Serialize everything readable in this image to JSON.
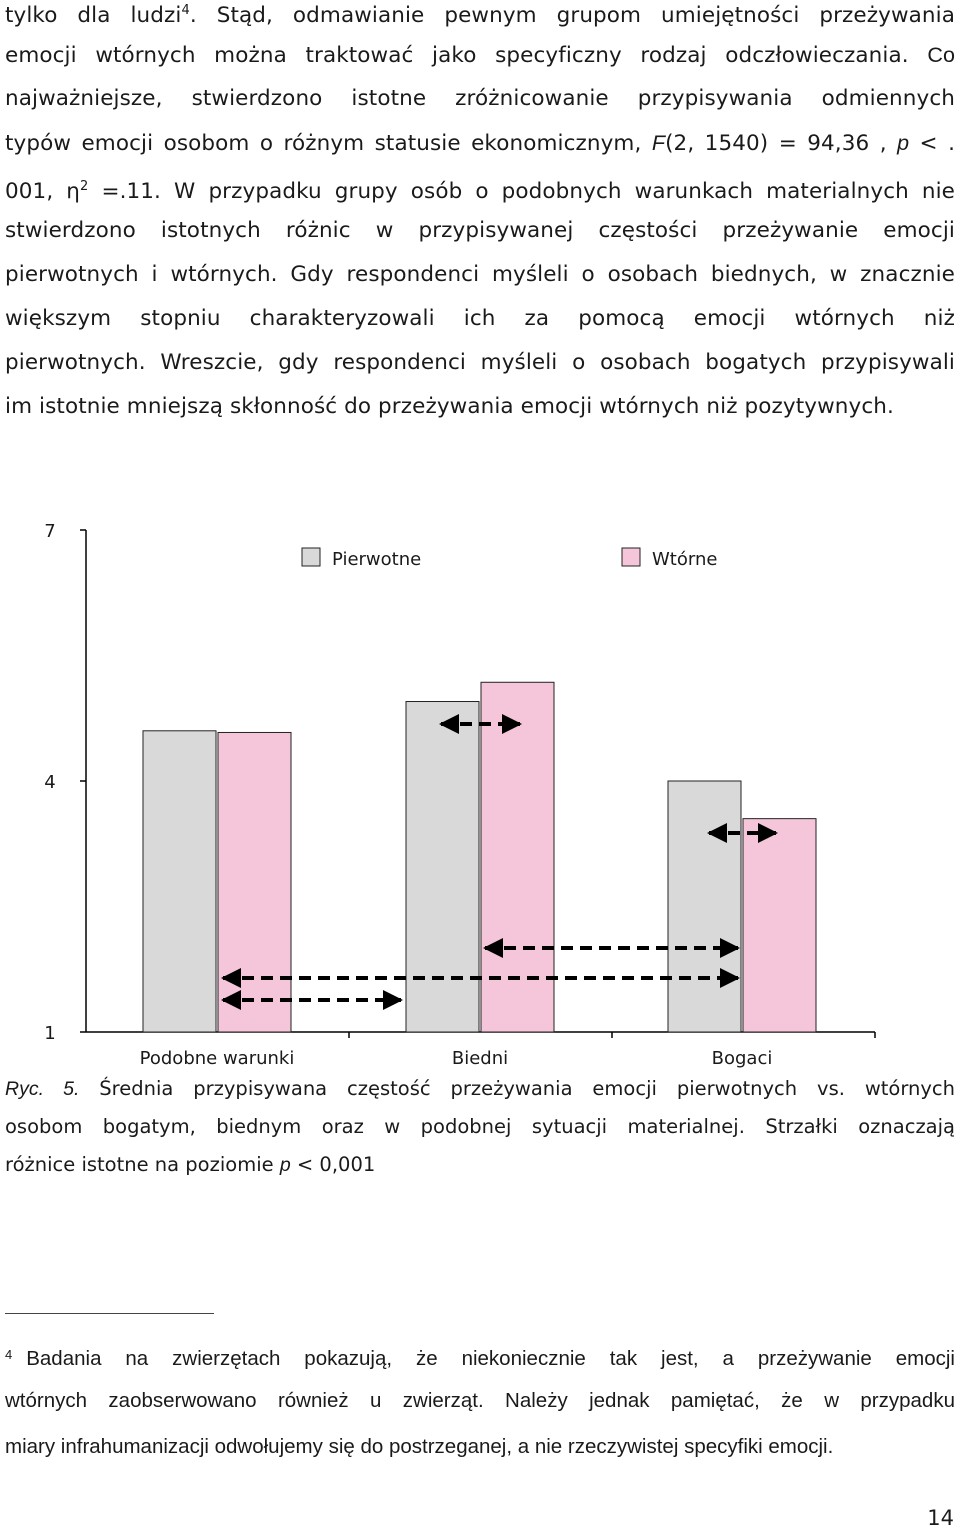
{
  "paragraph": {
    "l1": "tylko dla ludzi",
    "l1_sup": "4",
    "l1_rest": ". Stąd, odmawianie pewnym grupom umiejętności przeżywania",
    "l2": "emocji wtórnych można traktować jako specyficzny rodzaj odczłowieczania.",
    "l2_rest": "Co",
    "l3": "najważniejsze, stwierdzono istotne zróżnicowanie przypisywania odmiennych",
    "l4_a": "typów emocji osobom o różnym statusie ekonomicznym,",
    "l4_F": "F",
    "l4_b": "(2, 1540) = 94,36 ,",
    "l4_p": "p",
    "l4_c": "< .",
    "l5_a": "001, η",
    "l5_sup": "2",
    "l5_b": "=.11.",
    "l5_c": "W przypadku grupy osób o podobnych warunkach materialnych nie",
    "l6": "stwierdzono istotnych różnic w przypisywanej częstości przeżywanie emocji",
    "l7": "pierwotnych i wtórnych. Gdy respondenci myśleli o osobach biednych, w znacznie",
    "l8": "większym stopniu charakteryzowali ich za pomocą emocji wtórnych niż",
    "l9": "pierwotnych. Wreszcie, gdy respondenci myśleli o osobach bogatych przypisywali",
    "l10": "im istotnie mniejszą skłonność do przeżywania emocji wtórnych niż pozytywnych."
  },
  "chart_data": {
    "type": "bar",
    "categories": [
      "Podobne warunki",
      "Biedni",
      "Bogaci"
    ],
    "series": [
      {
        "name": "Pierwotne",
        "color": "#d9d9d9",
        "values": [
          4.6,
          4.95,
          4.0
        ]
      },
      {
        "name": "Wtórne",
        "color": "#f5c6d9",
        "values": [
          4.58,
          5.18,
          3.55
        ]
      }
    ],
    "yticks": [
      "7",
      "4",
      "1"
    ],
    "ylim": [
      1,
      7
    ],
    "legend": "top",
    "arrows": "dashed double-headed arrows marking significant differences"
  },
  "caption": {
    "label": "Ryc. 5.",
    "l1": "Średnia przypisywana częstość przeżywania emocji pierwotnych vs. wtórnych",
    "l2": "osobom bogatym, biednym oraz w podobnej sytuacji materialnej. Strzałki oznaczają",
    "l3_a": "różnice istotne na poziomie",
    "l3_p": "p",
    "l3_b": "< 0,001"
  },
  "footnote": {
    "mark": "4",
    "l1": "Badania na zwierzętach pokazują, że niekoniecznie tak jest, a przeżywanie emocji",
    "l2": "wtórnych zaobserwowano również u zwierząt. Należy jednak pamiętać, że w przypadku",
    "l3": "miary infrahumanizacji odwołujemy się do postrzeganej, a nie rzeczywistej specyfiki emocji."
  },
  "page_number": "14"
}
